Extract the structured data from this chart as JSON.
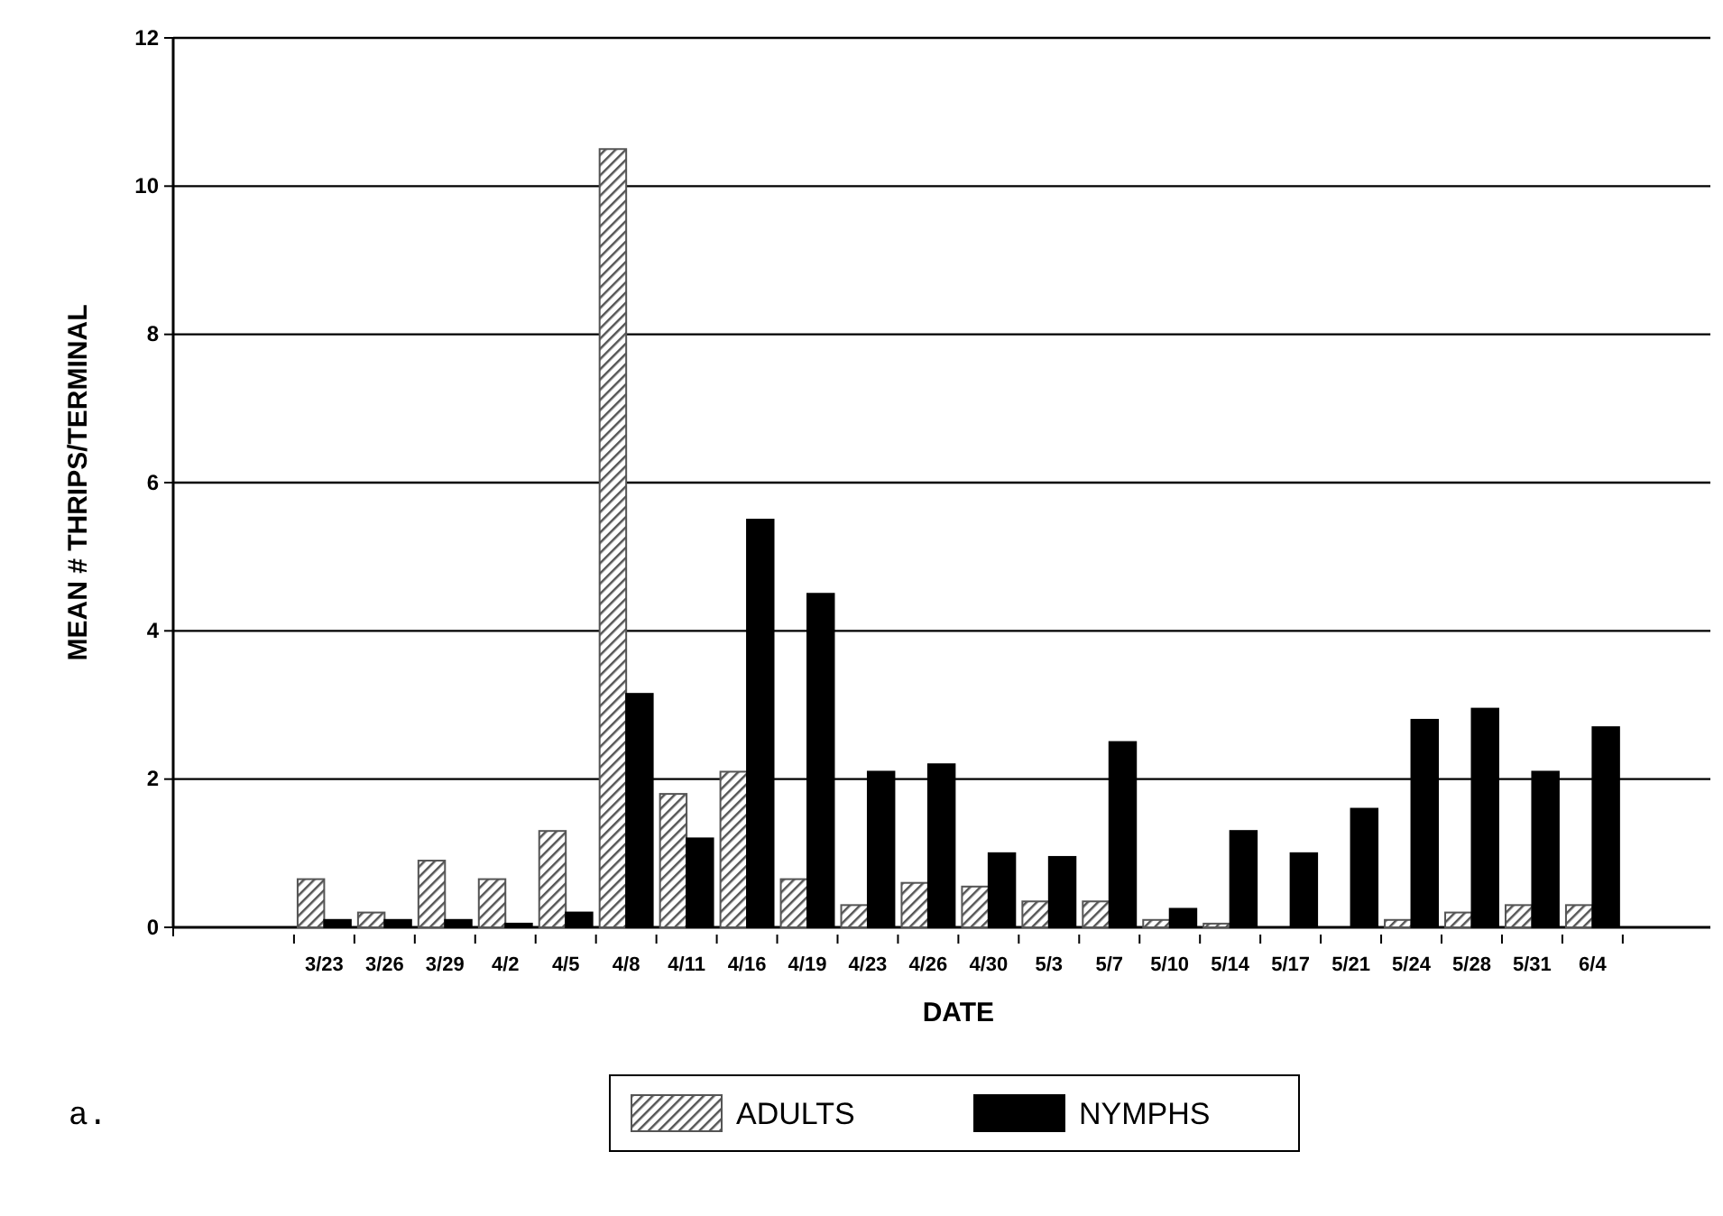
{
  "chart_data": {
    "type": "bar",
    "xlabel": "DATE",
    "ylabel": "MEAN # THRIPS/TERMINAL",
    "categories": [
      "3/23",
      "3/26",
      "3/29",
      "4/2",
      "4/5",
      "4/8",
      "4/11",
      "4/16",
      "4/19",
      "4/23",
      "4/26",
      "4/30",
      "5/3",
      "5/7",
      "5/10",
      "5/14",
      "5/17",
      "5/21",
      "5/24",
      "5/28",
      "5/31",
      "6/4"
    ],
    "series": [
      {
        "name": "ADULTS",
        "color": "#555555",
        "values": [
          0.65,
          0.2,
          0.9,
          0.65,
          1.3,
          10.5,
          1.8,
          2.1,
          0.65,
          0.3,
          0.6,
          0.55,
          0.35,
          0.35,
          0.1,
          0.05,
          0,
          0,
          0.1,
          0.2,
          0.3,
          0.3
        ]
      },
      {
        "name": "NYMPHS",
        "color": "#000000",
        "values": [
          0.1,
          0.1,
          0.1,
          0.05,
          0.2,
          3.15,
          1.2,
          5.5,
          4.5,
          2.1,
          2.2,
          1.0,
          0.95,
          2.5,
          0.25,
          1.3,
          1.0,
          1.6,
          2.8,
          2.95,
          2.1,
          2.7
        ]
      }
    ],
    "ylim": [
      0,
      12
    ],
    "yticks": [
      0,
      2,
      4,
      6,
      8,
      10,
      12
    ],
    "grid": "y",
    "legend": "bottom",
    "annotations": [
      "a."
    ]
  }
}
